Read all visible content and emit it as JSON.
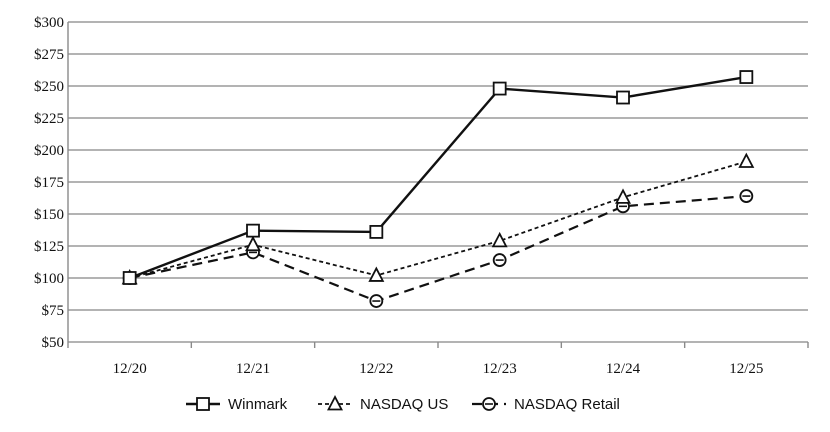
{
  "chart_data": {
    "type": "line",
    "categories": [
      "12/20",
      "12/21",
      "12/22",
      "12/23",
      "12/24",
      "12/25"
    ],
    "ylim": [
      50,
      300
    ],
    "ytick_values": [
      50,
      75,
      100,
      125,
      150,
      175,
      200,
      225,
      250,
      275,
      300
    ],
    "ytick_labels": [
      "$50",
      "$75",
      "$100",
      "$125",
      "$150",
      "$175",
      "$200",
      "$225",
      "$250",
      "$275",
      "$300"
    ],
    "grid": true,
    "legend_position": "bottom",
    "series": [
      {
        "name": "Winmark",
        "values": [
          100,
          137,
          136,
          248,
          241,
          257
        ],
        "marker": "square",
        "dash": "solid"
      },
      {
        "name": "NASDAQ US",
        "values": [
          100,
          126,
          102,
          129,
          163,
          191
        ],
        "marker": "triangle",
        "dash": "dotted"
      },
      {
        "name": "NASDAQ Retail",
        "values": [
          100,
          120,
          82,
          114,
          156,
          164
        ],
        "marker": "circle",
        "dash": "dashed"
      }
    ],
    "colors": {
      "line": "#111111",
      "grid": "#9a9a9a"
    }
  }
}
